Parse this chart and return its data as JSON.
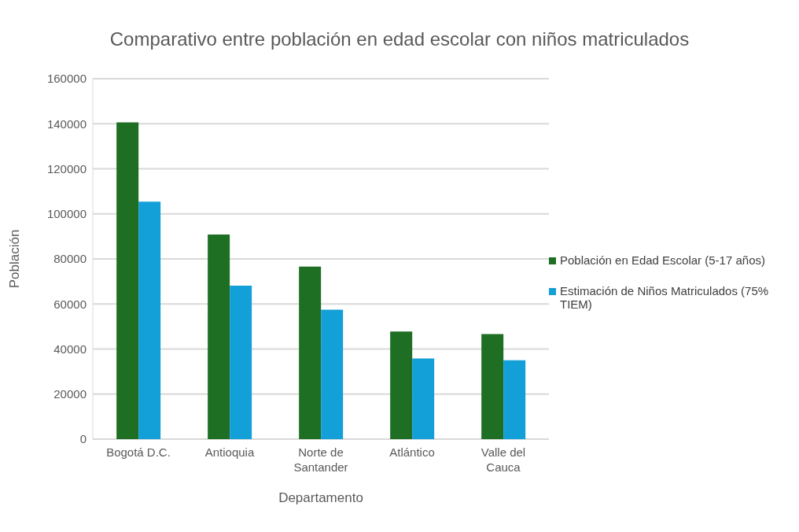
{
  "chart_data": {
    "type": "bar",
    "title": "Comparativo entre población en edad escolar con niños matriculados",
    "xlabel": "Departamento",
    "ylabel": "Población",
    "categories": [
      "Bogotá D.C.",
      "Antioquia",
      "Norte de Santander",
      "Atlántico",
      "Valle del Cauca"
    ],
    "series": [
      {
        "name": "Población en Edad Escolar (5-17 años)",
        "color": "#1e6e23",
        "values": [
          140600,
          90800,
          76600,
          47800,
          46600
        ]
      },
      {
        "name": "Estimación de Niños Matriculados (75% TIEM)",
        "color": "#139fd8",
        "values": [
          105400,
          68100,
          57500,
          35800,
          35000
        ]
      }
    ],
    "ylim": [
      0,
      160000
    ],
    "yticks": [
      0,
      20000,
      40000,
      60000,
      80000,
      100000,
      120000,
      140000,
      160000
    ],
    "grid": "y",
    "legend": "right"
  }
}
